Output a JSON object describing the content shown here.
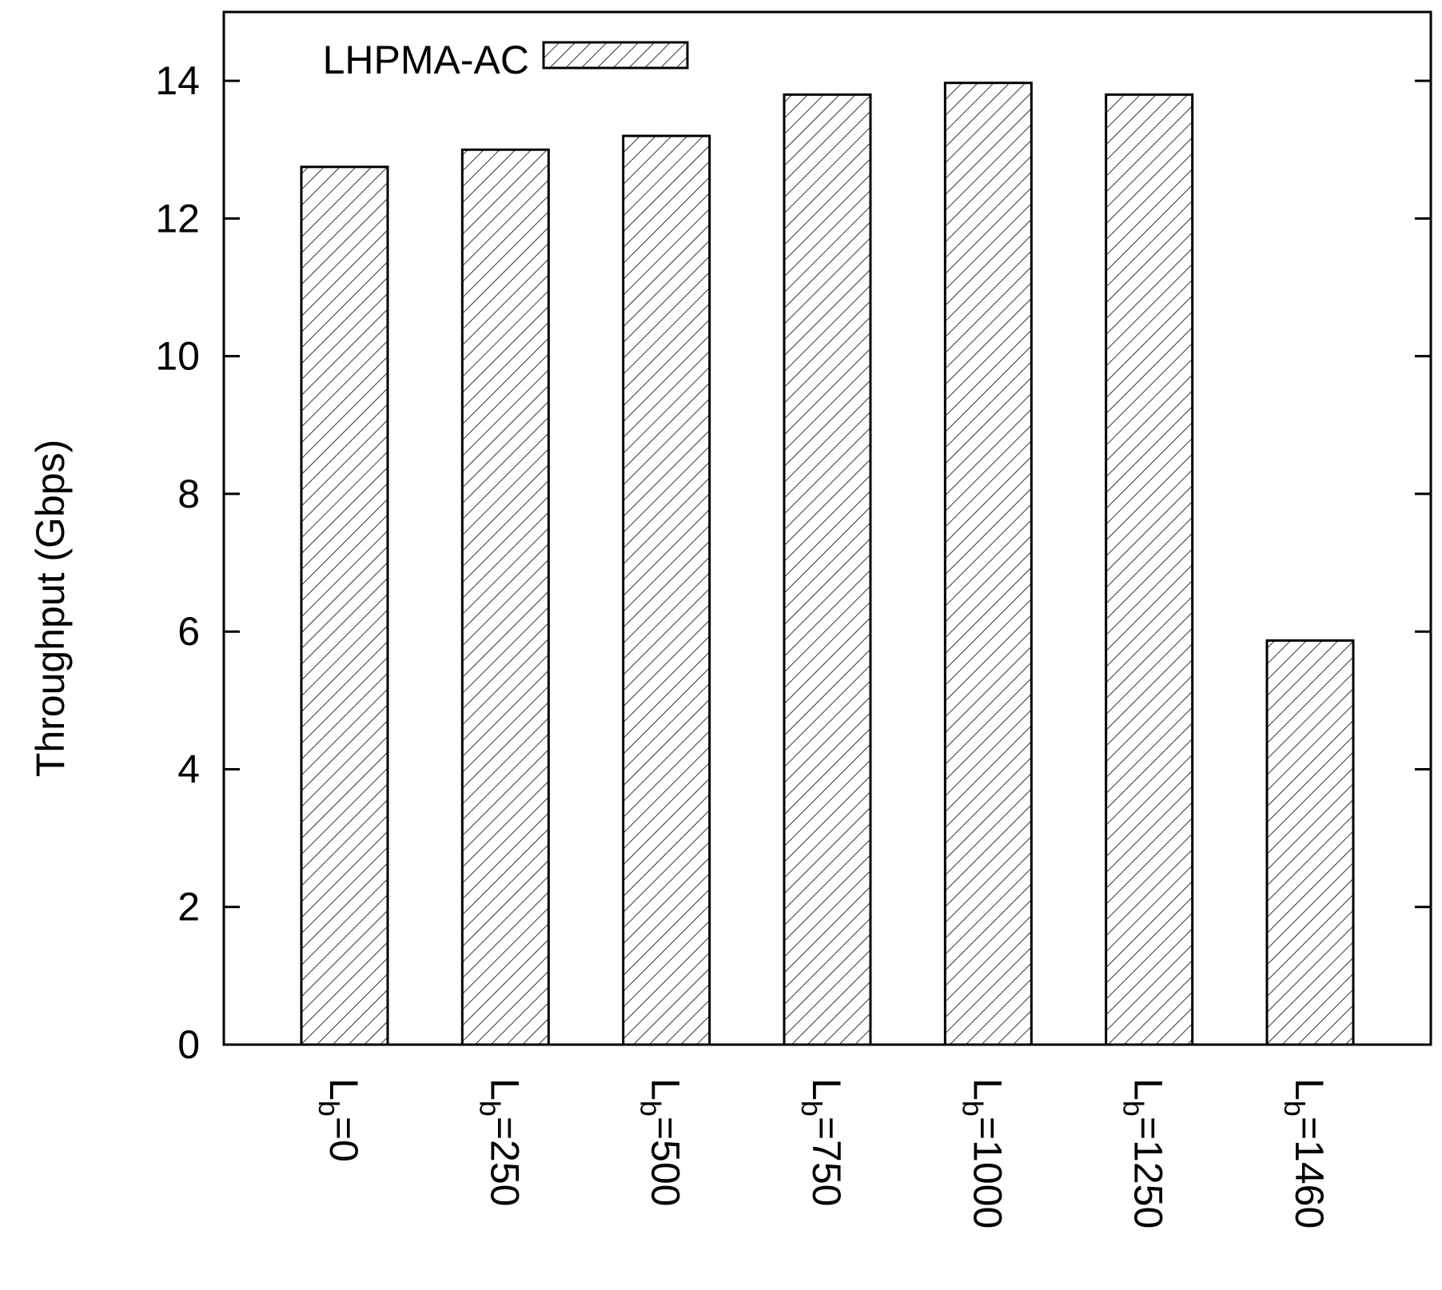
{
  "chart_data": {
    "type": "bar",
    "title": "",
    "xlabel": "",
    "ylabel": "Throughput (Gbps)",
    "ylim": [
      0,
      15
    ],
    "yticks": [
      0,
      2,
      4,
      6,
      8,
      10,
      12,
      14
    ],
    "grid": false,
    "legend_position": "top-left",
    "categories": [
      {
        "base": "L",
        "sub": "b",
        "rest": "=0"
      },
      {
        "base": "L",
        "sub": "b",
        "rest": "=250"
      },
      {
        "base": "L",
        "sub": "b",
        "rest": "=500"
      },
      {
        "base": "L",
        "sub": "b",
        "rest": "=750"
      },
      {
        "base": "L",
        "sub": "b",
        "rest": "=1000"
      },
      {
        "base": "L",
        "sub": "b",
        "rest": "=1250"
      },
      {
        "base": "L",
        "sub": "b",
        "rest": "=1460"
      }
    ],
    "series": [
      {
        "name": "LHPMA-AC",
        "pattern": "diagonal-hatch",
        "values": [
          12.75,
          13.0,
          13.2,
          13.8,
          13.97,
          13.8,
          5.87
        ]
      }
    ],
    "colors": {
      "stroke": "#000000",
      "fill": "#ffffff",
      "hatch": "#000000"
    }
  }
}
